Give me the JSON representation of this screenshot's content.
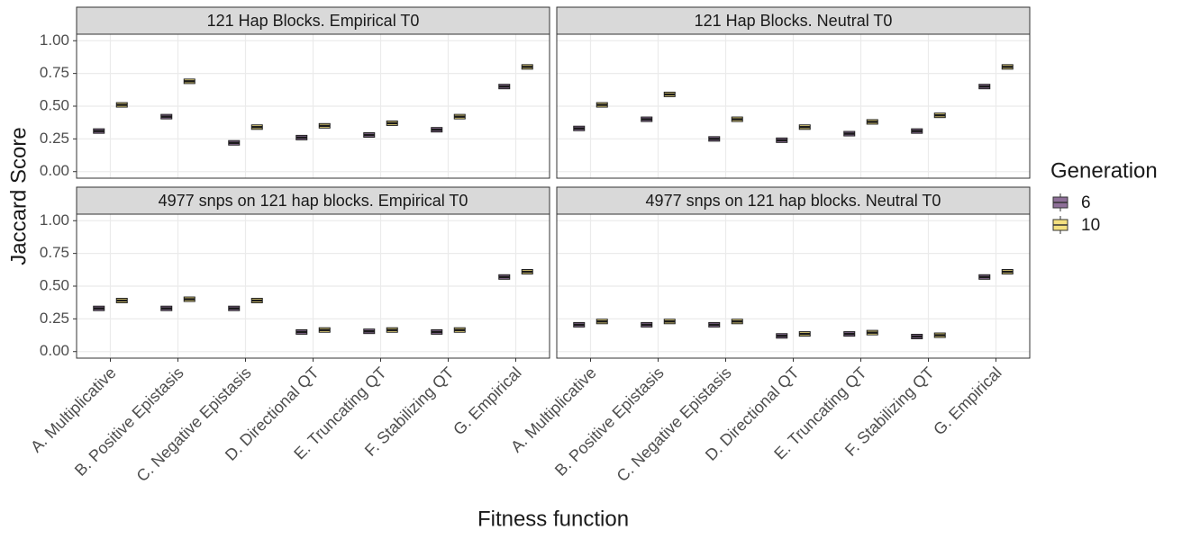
{
  "x_label": "Fitness function",
  "y_label": "Jaccard Score",
  "legend_title": "Generation",
  "chart_data": [
    {
      "type": "box",
      "title": "121 Hap Blocks. Empirical T0",
      "ylim": [
        -0.05,
        1.05
      ],
      "yticks": [
        {
          "value": 0,
          "label": "0.00"
        },
        {
          "value": 0.25,
          "label": "0.25"
        },
        {
          "value": 0.5,
          "label": "0.50"
        },
        {
          "value": 0.75,
          "label": "0.75"
        },
        {
          "value": 1,
          "label": "1.00"
        }
      ],
      "series": [
        {
          "name": "6",
          "color": "#8e6f98",
          "values": [
            0.31,
            0.42,
            0.22,
            0.26,
            0.28,
            0.32,
            0.65
          ]
        },
        {
          "name": "10",
          "color": "#f3e07f",
          "values": [
            0.51,
            0.69,
            0.34,
            0.35,
            0.37,
            0.42,
            0.8
          ]
        }
      ]
    },
    {
      "type": "box",
      "title": "121 Hap Blocks. Neutral T0",
      "ylim": [
        -0.05,
        1.05
      ],
      "series": [
        {
          "color": "#8e6f98",
          "values": [
            0.33,
            0.4,
            0.25,
            0.24,
            0.29,
            0.31,
            0.65
          ]
        },
        {
          "color": "#f3e07f",
          "values": [
            0.51,
            0.59,
            0.4,
            0.34,
            0.38,
            0.43,
            0.8
          ]
        }
      ]
    },
    {
      "type": "box",
      "title": "4977 snps on 121 hap blocks. Empirical T0",
      "ylim": [
        -0.05,
        1.05
      ],
      "yticks": [
        {
          "value": 0,
          "label": "0.00"
        },
        {
          "value": 0.25,
          "label": "0.25"
        },
        {
          "value": 0.5,
          "label": "0.50"
        },
        {
          "value": 0.75,
          "label": "0.75"
        },
        {
          "value": 1,
          "label": "1.00"
        }
      ],
      "categories": [
        "A. Multiplicative",
        "B. Positive Epistasis",
        "C. Negative Epistasis",
        "D. Directional QT",
        "E. Truncating QT",
        "F. Stabilizing QT",
        "G. Empirical"
      ],
      "series": [
        {
          "color": "#8e6f98",
          "values": [
            0.33,
            0.33,
            0.33,
            0.15,
            0.155,
            0.15,
            0.57
          ]
        },
        {
          "color": "#f3e07f",
          "values": [
            0.39,
            0.4,
            0.39,
            0.165,
            0.165,
            0.165,
            0.61
          ]
        }
      ]
    },
    {
      "type": "box",
      "title": "4977 snps on 121 hap blocks. Neutral T0",
      "ylim": [
        -0.05,
        1.05
      ],
      "categories": [
        "A. Multiplicative",
        "B. Positive Epistasis",
        "C. Negative Epistasis",
        "D. Directional QT",
        "E. Truncating QT",
        "F. Stabilizing QT",
        "G. Empirical"
      ],
      "series": [
        {
          "color": "#8e6f98",
          "values": [
            0.205,
            0.205,
            0.205,
            0.12,
            0.135,
            0.115,
            0.57
          ]
        },
        {
          "color": "#f3e07f",
          "values": [
            0.23,
            0.23,
            0.23,
            0.135,
            0.145,
            0.125,
            0.61
          ]
        }
      ]
    }
  ]
}
